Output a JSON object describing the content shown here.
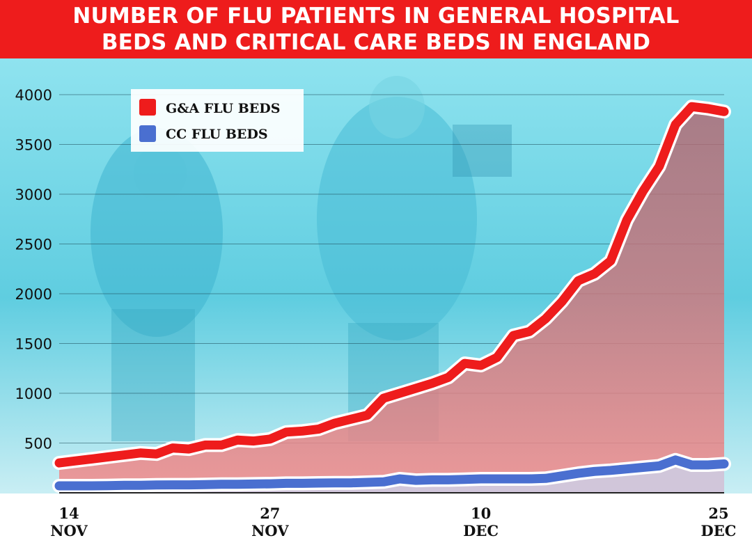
{
  "header": {
    "title_line1": "NUMBER OF FLU PATIENTS IN GENERAL HOSPITAL",
    "title_line2": "BEDS AND CRITICAL CARE BEDS IN ENGLAND"
  },
  "colors": {
    "title_bg": "#ee1c1c",
    "ga_line": "#ee1c1c",
    "cc_line": "#4a6fd0",
    "photo_tint": "#5ccfe0"
  },
  "chart_data": {
    "type": "area",
    "title": "NUMBER OF FLU PATIENTS IN GENERAL HOSPITAL BEDS AND CRITICAL CARE BEDS IN ENGLAND",
    "xlabel": "",
    "ylabel": "",
    "ylim": [
      0,
      4000
    ],
    "yticks": [
      500,
      1000,
      1500,
      2000,
      2500,
      3000,
      3500,
      4000
    ],
    "x_tick_labels": [
      {
        "line1": "14",
        "line2": "NOV",
        "index": 0
      },
      {
        "line1": "27",
        "line2": "NOV",
        "index": 13
      },
      {
        "line1": "10",
        "line2": "DEC",
        "index": 26
      },
      {
        "line1": "25",
        "line2": "DEC",
        "index": 41
      }
    ],
    "grid": true,
    "legend_position": "top-left",
    "series": [
      {
        "name": "G&A FLU BEDS",
        "color": "#ee1c1c",
        "values": [
          300,
          320,
          340,
          360,
          380,
          400,
          390,
          450,
          440,
          480,
          480,
          530,
          520,
          540,
          610,
          620,
          640,
          700,
          740,
          780,
          950,
          1000,
          1050,
          1100,
          1160,
          1300,
          1280,
          1360,
          1580,
          1620,
          1750,
          1920,
          2130,
          2200,
          2330,
          2740,
          3030,
          3280,
          3700,
          3880,
          3860,
          3830
        ]
      },
      {
        "name": "CC FLU BEDS",
        "color": "#4a6fd0",
        "values": [
          70,
          70,
          70,
          72,
          75,
          75,
          78,
          80,
          80,
          82,
          85,
          85,
          88,
          90,
          95,
          95,
          98,
          100,
          100,
          105,
          110,
          140,
          125,
          130,
          130,
          135,
          140,
          140,
          140,
          140,
          145,
          170,
          195,
          215,
          225,
          240,
          255,
          270,
          330,
          280,
          280,
          290
        ]
      }
    ]
  }
}
